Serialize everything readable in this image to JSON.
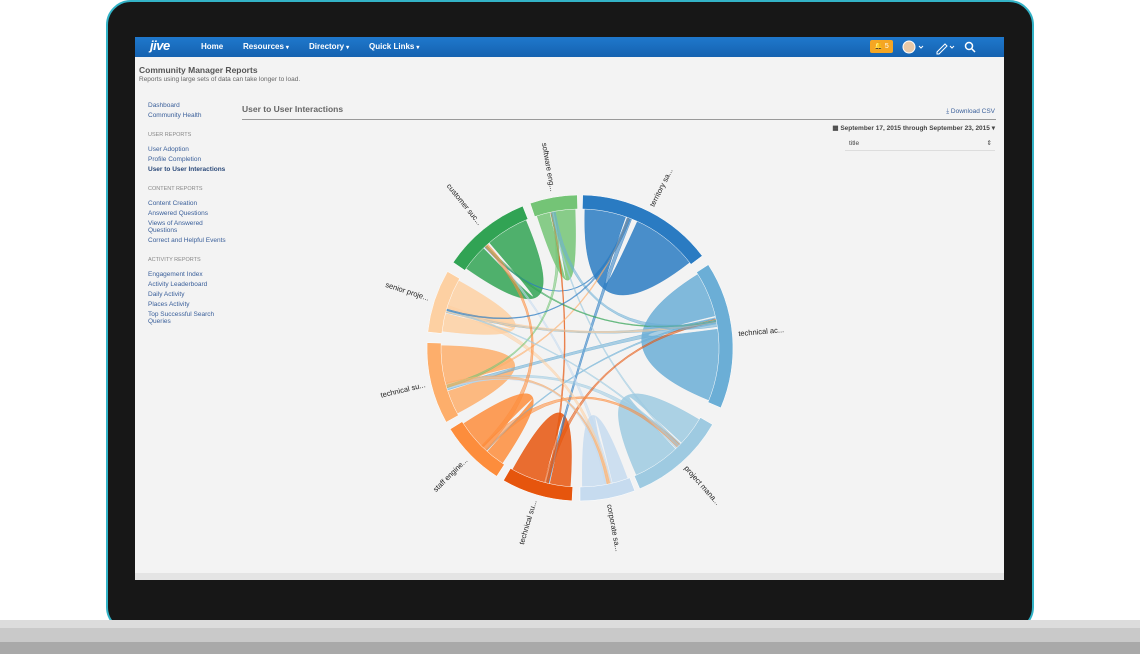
{
  "navbar": {
    "logo": "jive",
    "items": [
      "Home",
      "Resources",
      "Directory",
      "Quick Links"
    ],
    "dropdowns": [
      false,
      true,
      true,
      true
    ],
    "notifications": "5"
  },
  "header": {
    "title": "Community Manager Reports",
    "subtitle": "Reports using large sets of data can take longer to load."
  },
  "sidebar": {
    "links": [
      "Dashboard",
      "Community Health"
    ],
    "sections": [
      {
        "heading": "USER REPORTS",
        "links": [
          "User Adoption",
          "Profile Completion",
          "User to User Interactions"
        ],
        "active": 2
      },
      {
        "heading": "CONTENT REPORTS",
        "links": [
          "Content Creation",
          "Answered Questions",
          "Views of Answered Questions",
          "Correct and Helpful Events"
        ]
      },
      {
        "heading": "ACTIVITY REPORTS",
        "links": [
          "Engagement Index",
          "Activity Leaderboard",
          "Daily Activity",
          "Places Activity",
          "Top Successful Search Queries"
        ]
      }
    ]
  },
  "report": {
    "title": "User to User Interactions",
    "download": "Download CSV",
    "date_range": "September 17, 2015 through September 23, 2015",
    "select": "title"
  },
  "diagram": {
    "groups": [
      {
        "label": "territory sa...",
        "color": "#2a7bc2"
      },
      {
        "label": "technical ac...",
        "color": "#6baed6"
      },
      {
        "label": "project mana...",
        "color": "#9ecae1"
      },
      {
        "label": "corporate sa...",
        "color": "#c6dbef"
      },
      {
        "label": "technical su...",
        "color": "#e6550d"
      },
      {
        "label": "staff engine...",
        "color": "#fd8d3c"
      },
      {
        "label": "technical su...",
        "color": "#fdae6b"
      },
      {
        "label": "senior proje...",
        "color": "#fdd0a2"
      },
      {
        "label": "customer suc...",
        "color": "#31a354"
      },
      {
        "label": "software eng...",
        "color": "#74c476"
      }
    ]
  }
}
